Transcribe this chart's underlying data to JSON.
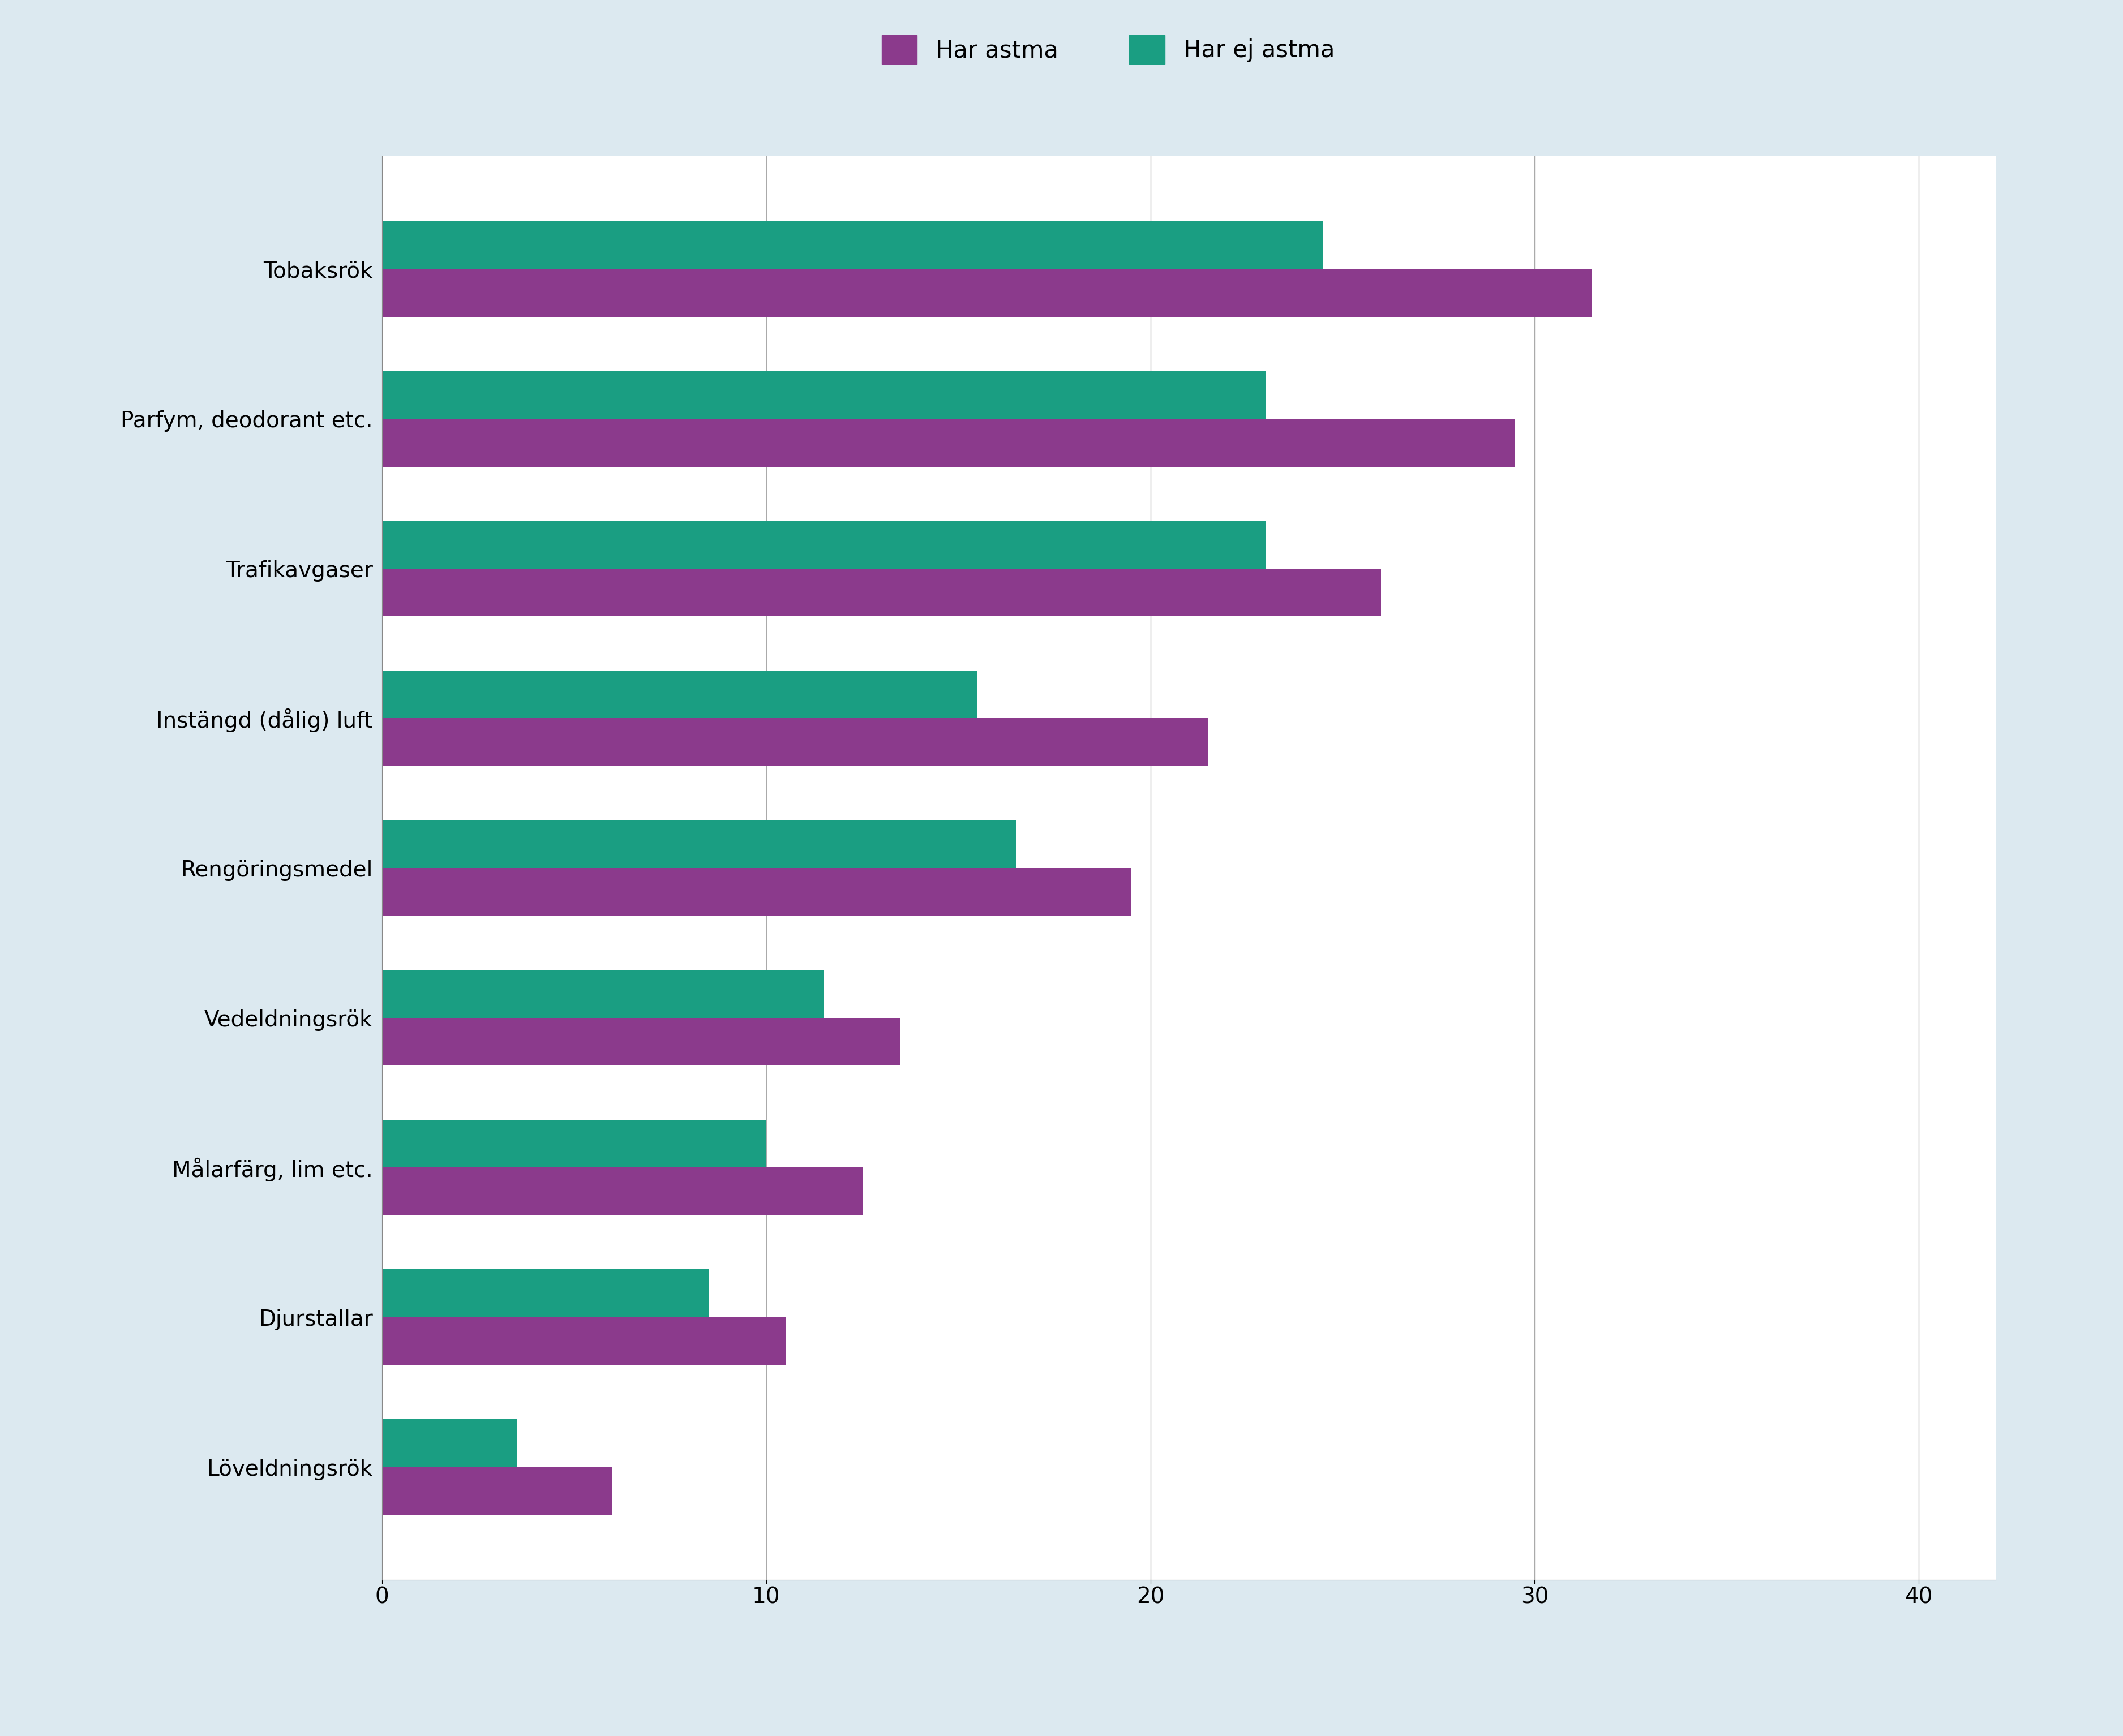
{
  "categories": [
    "Tobaksrök",
    "Parfym, deodorant etc.",
    "Trafikavgaser",
    "Instängd (dålig) luft",
    "Rengöringsmedel",
    "Vedeldningsrök",
    "Målarfärg, lim etc.",
    "Djurstallar",
    "Löveldningsrök"
  ],
  "har_astma": [
    31.5,
    29.5,
    26.0,
    21.5,
    19.5,
    13.5,
    12.5,
    10.5,
    6.0
  ],
  "har_ej_astma": [
    24.5,
    23.0,
    23.0,
    15.5,
    16.5,
    11.5,
    10.0,
    8.5,
    3.5
  ],
  "color_astma": "#8B3A8C",
  "color_ej_astma": "#1A9E82",
  "legend_astma": "Har astma",
  "legend_ej_astma": "Har ej astma",
  "xlim": [
    0,
    42
  ],
  "xticks": [
    0,
    10,
    20,
    30,
    40
  ],
  "background_outer": "#dce9f0",
  "background_inner": "#ffffff",
  "bar_height": 0.32,
  "tick_fontsize": 28,
  "label_fontsize": 28,
  "legend_fontsize": 30,
  "xlabel_fontsize": 28
}
